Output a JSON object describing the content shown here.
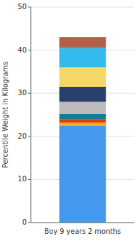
{
  "chart_data": {
    "type": "bar",
    "stacked": true,
    "categories": [
      "Boy 9 years 2 months"
    ],
    "series": [
      {
        "color": "#4499EE",
        "values": [
          22.5
        ]
      },
      {
        "color": "#F5A623",
        "values": [
          0.7
        ]
      },
      {
        "color": "#D94010",
        "values": [
          0.8
        ]
      },
      {
        "color": "#1A7A96",
        "values": [
          1.2
        ]
      },
      {
        "color": "#BBBBBB",
        "values": [
          2.8
        ]
      },
      {
        "color": "#2B3F6E",
        "values": [
          3.5
        ]
      },
      {
        "color": "#F5D769",
        "values": [
          4.5
        ]
      },
      {
        "color": "#34BBEE",
        "values": [
          4.5
        ]
      },
      {
        "color": "#B0624A",
        "values": [
          2.5
        ]
      }
    ],
    "ylabel": "Percentile Weight in Kilograms",
    "ylim": [
      0,
      50
    ],
    "yticks": [
      0,
      10,
      20,
      30,
      40,
      50
    ],
    "grid": true
  }
}
